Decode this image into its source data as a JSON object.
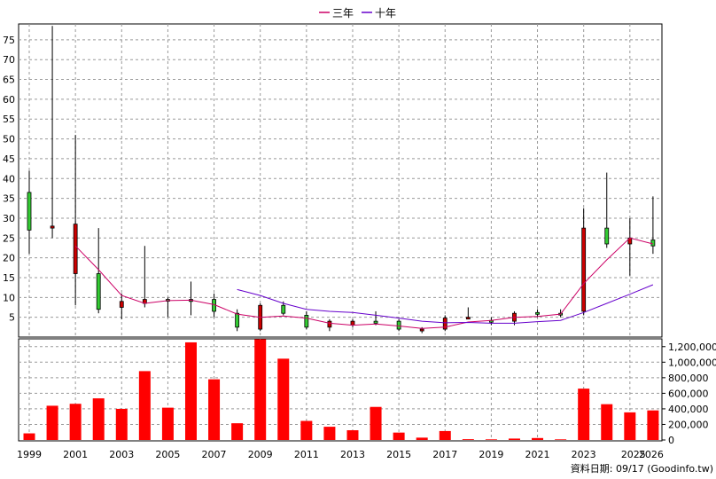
{
  "chart_data": [
    {
      "type": "candlestick",
      "title": "",
      "legend": {
        "placement": "top-center",
        "entries": [
          {
            "name": "三年",
            "color": "#cc0066"
          },
          {
            "name": "十年",
            "color": "#6600cc"
          }
        ]
      },
      "ylim": [
        0,
        79
      ],
      "y_ticks": [
        5,
        10,
        15,
        20,
        25,
        30,
        35,
        40,
        45,
        50,
        55,
        60,
        65,
        70,
        75
      ],
      "grid": true,
      "up_color": "#33cc33",
      "down_color": "#cc0000",
      "candles": [
        {
          "year": 1999,
          "open": 27.0,
          "high": 42.0,
          "low": 21.0,
          "close": 36.5
        },
        {
          "year": 2000,
          "open": 28.0,
          "high": 78.5,
          "low": 25.0,
          "close": 27.5
        },
        {
          "year": 2001,
          "open": 28.5,
          "high": 51.0,
          "low": 8.0,
          "close": 16.0
        },
        {
          "year": 2002,
          "open": 7.0,
          "high": 27.5,
          "low": 6.0,
          "close": 16.0
        },
        {
          "year": 2003,
          "open": 9.0,
          "high": 11.0,
          "low": 4.5,
          "close": 7.5
        },
        {
          "year": 2004,
          "open": 9.5,
          "high": 23.0,
          "low": 7.5,
          "close": 8.5
        },
        {
          "year": 2005,
          "open": 9.5,
          "high": 10.0,
          "low": 5.0,
          "close": 9.5
        },
        {
          "year": 2006,
          "open": 9.0,
          "high": 14.0,
          "low": 5.5,
          "close": 9.5
        },
        {
          "year": 2007,
          "open": 6.5,
          "high": 11.0,
          "low": 5.0,
          "close": 9.5
        },
        {
          "year": 2008,
          "open": 2.5,
          "high": 7.0,
          "low": 1.5,
          "close": 6.0
        },
        {
          "year": 2009,
          "open": 8.0,
          "high": 8.5,
          "low": 1.5,
          "close": 2.0
        },
        {
          "year": 2010,
          "open": 6.0,
          "high": 9.0,
          "low": 5.5,
          "close": 8.0
        },
        {
          "year": 2011,
          "open": 2.5,
          "high": 6.5,
          "low": 2.0,
          "close": 5.5
        },
        {
          "year": 2012,
          "open": 4.0,
          "high": 4.5,
          "low": 1.5,
          "close": 2.5
        },
        {
          "year": 2013,
          "open": 4.0,
          "high": 4.5,
          "low": 2.5,
          "close": 3.0
        },
        {
          "year": 2014,
          "open": 3.5,
          "high": 6.5,
          "low": 3.0,
          "close": 4.0
        },
        {
          "year": 2015,
          "open": 2.0,
          "high": 4.5,
          "low": 1.5,
          "close": 4.0
        },
        {
          "year": 2016,
          "open": 2.0,
          "high": 2.5,
          "low": 1.0,
          "close": 1.8
        },
        {
          "year": 2017,
          "open": 4.8,
          "high": 5.5,
          "low": 1.5,
          "close": 2.0
        },
        {
          "year": 2018,
          "open": 5.0,
          "high": 7.5,
          "low": 4.5,
          "close": 4.8
        },
        {
          "year": 2019,
          "open": 4.0,
          "high": 5.0,
          "low": 3.0,
          "close": 4.2
        },
        {
          "year": 2020,
          "open": 6.0,
          "high": 6.5,
          "low": 3.0,
          "close": 4.0
        },
        {
          "year": 2021,
          "open": 6.0,
          "high": 7.0,
          "low": 5.0,
          "close": 6.2
        },
        {
          "year": 2022,
          "open": 6.0,
          "high": 7.0,
          "low": 5.0,
          "close": 6.0
        },
        {
          "year": 2023,
          "open": 27.5,
          "high": 32.5,
          "low": 5.5,
          "close": 6.5
        },
        {
          "year": 2024,
          "open": 23.5,
          "high": 41.5,
          "low": 22.5,
          "close": 27.5
        },
        {
          "year": 2025,
          "open": 25.0,
          "high": 30.0,
          "low": 15.5,
          "close": 23.5
        },
        {
          "year": 2026,
          "open": 23.0,
          "high": 35.5,
          "low": 21.0,
          "close": 24.5
        }
      ],
      "series": [
        {
          "name": "三年",
          "color": "#cc0066",
          "x": [
            2001,
            2002,
            2003,
            2004,
            2005,
            2006,
            2007,
            2008,
            2009,
            2010,
            2011,
            2012,
            2013,
            2014,
            2015,
            2016,
            2017,
            2018,
            2019,
            2020,
            2021,
            2022,
            2023,
            2024,
            2025,
            2026
          ],
          "values": [
            23.0,
            17.0,
            10.5,
            8.5,
            9.2,
            9.3,
            8.2,
            5.8,
            5.0,
            5.3,
            4.8,
            3.5,
            3.0,
            3.3,
            2.8,
            2.2,
            2.5,
            3.8,
            4.2,
            5.0,
            5.2,
            5.8,
            13.5,
            19.5,
            25.0,
            23.5
          ]
        },
        {
          "name": "十年",
          "color": "#6600cc",
          "x": [
            2008,
            2009,
            2010,
            2011,
            2012,
            2013,
            2014,
            2015,
            2016,
            2017,
            2018,
            2019,
            2020,
            2021,
            2022,
            2023,
            2024,
            2025,
            2026
          ],
          "values": [
            12.0,
            10.5,
            8.5,
            7.0,
            6.5,
            6.2,
            5.5,
            4.8,
            4.0,
            3.6,
            3.7,
            3.5,
            3.5,
            3.9,
            4.2,
            6.2,
            8.5,
            10.8,
            13.2
          ]
        }
      ]
    },
    {
      "type": "bar",
      "ylabel": "",
      "ylim": [
        0,
        1300000
      ],
      "y_ticks": [
        "0",
        "200,000",
        "400,000",
        "600,000",
        "800,000",
        "1,000,000",
        "1,200,000"
      ],
      "y_tick_values": [
        0,
        200000,
        400000,
        600000,
        800000,
        1000000,
        1200000
      ],
      "bar_color": "#ff0000",
      "categories": [
        1999,
        2000,
        2001,
        2002,
        2003,
        2004,
        2005,
        2006,
        2007,
        2008,
        2009,
        2010,
        2011,
        2012,
        2013,
        2014,
        2015,
        2016,
        2017,
        2018,
        2019,
        2020,
        2021,
        2022,
        2023,
        2024,
        2025,
        2026
      ],
      "values": [
        85000,
        440000,
        465000,
        535000,
        400000,
        885000,
        415000,
        1255000,
        780000,
        215000,
        1295000,
        1045000,
        245000,
        170000,
        125000,
        425000,
        95000,
        30000,
        115000,
        10000,
        8000,
        18000,
        25000,
        8000,
        660000,
        460000,
        355000,
        380000
      ]
    }
  ],
  "x_tick_labels": [
    "1999",
    "2001",
    "2003",
    "2005",
    "2007",
    "2009",
    "2011",
    "2013",
    "2015",
    "2017",
    "2019",
    "2021",
    "2023",
    "2025",
    "2026"
  ],
  "footer": "資料日期: 09/17  (Goodinfo.tw)"
}
